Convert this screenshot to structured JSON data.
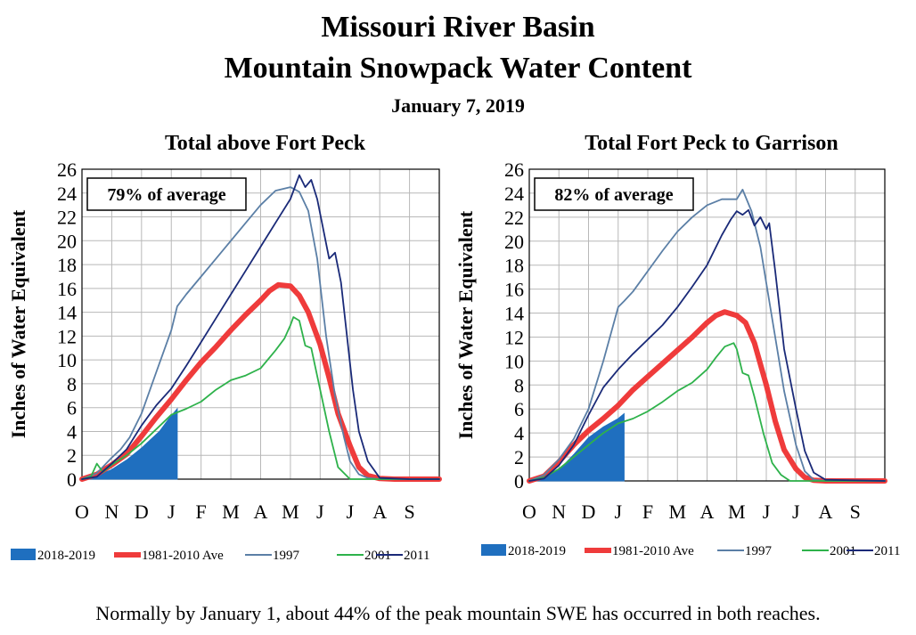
{
  "title_line1": "Missouri River Basin",
  "title_line2": "Mountain Snowpack Water Content",
  "date": "January 7, 2019",
  "footnote": "Normally by January 1, about 44% of the peak mountain SWE has occurred in both reaches.",
  "colors": {
    "s2019": "#1f6fbf",
    "ave": "#ef3b3b",
    "y1997": "#5b7fa6",
    "y2001": "#2eb24b",
    "y2011": "#1a2a78"
  },
  "chart_data": [
    {
      "type": "line",
      "title": "Total above Fort Peck",
      "ylabel": "Inches of Water Equivalent",
      "xlabel": "",
      "annotation": "79% of average",
      "x_unit": "months since Oct 1",
      "x_tick_labels": [
        "O",
        "N",
        "D",
        "J",
        "F",
        "M",
        "A",
        "M",
        "J",
        "J",
        "A",
        "S"
      ],
      "xlim": [
        0,
        12
      ],
      "ylim": [
        0,
        26
      ],
      "y_ticks": [
        0,
        2,
        4,
        6,
        8,
        10,
        12,
        14,
        16,
        18,
        20,
        22,
        24,
        26
      ],
      "grid": true,
      "legend_position": "bottom",
      "series": [
        {
          "name": "2018-2019",
          "style": "area",
          "x": [
            0,
            0.5,
            1,
            1.5,
            2,
            2.3,
            2.6,
            2.9,
            3.1,
            3.2,
            3.2
          ],
          "y": [
            0,
            0.3,
            0.8,
            1.6,
            2.6,
            3.3,
            4.0,
            5.0,
            5.6,
            5.9,
            0
          ]
        },
        {
          "name": "1981-2010 Ave",
          "style": "thick",
          "x": [
            0,
            0.5,
            1,
            1.5,
            2,
            2.5,
            3,
            3.5,
            4,
            4.5,
            5,
            5.5,
            6,
            6.3,
            6.6,
            7,
            7.3,
            7.6,
            8,
            8.3,
            8.6,
            9,
            9.3,
            9.6,
            10,
            10.5,
            11,
            12
          ],
          "y": [
            0,
            0.4,
            1.2,
            2.1,
            3.6,
            5.2,
            6.7,
            8.3,
            9.8,
            11.1,
            12.5,
            13.8,
            15.0,
            15.8,
            16.3,
            16.2,
            15.4,
            14.0,
            11.3,
            8.5,
            5.5,
            2.8,
            1.0,
            0.3,
            0.05,
            0,
            0,
            0
          ]
        },
        {
          "name": "1997",
          "style": "line",
          "x": [
            0,
            0.5,
            1,
            1.3,
            1.6,
            2,
            2.5,
            3,
            3.2,
            3.5,
            4,
            4.5,
            5,
            5.5,
            6,
            6.5,
            7,
            7.3,
            7.6,
            7.9,
            8.2,
            8.5,
            8.8,
            9,
            9.3,
            9.6,
            10,
            11,
            12
          ],
          "y": [
            0,
            0.5,
            1.8,
            2.5,
            3.5,
            5.5,
            9,
            12.5,
            14.5,
            15.5,
            17,
            18.5,
            20,
            21.5,
            23,
            24.2,
            24.5,
            24.1,
            22.5,
            18.5,
            12,
            7,
            3.5,
            1.5,
            0.4,
            0.1,
            0,
            0,
            0
          ]
        },
        {
          "name": "2001",
          "style": "line",
          "x": [
            0,
            0.3,
            0.5,
            0.7,
            1,
            1.5,
            2,
            2.5,
            3,
            3.5,
            4,
            4.5,
            5,
            5.5,
            6,
            6.5,
            6.8,
            7,
            7.1,
            7.3,
            7.5,
            7.7,
            8,
            8.3,
            8.6,
            9,
            12
          ],
          "y": [
            0,
            0.2,
            1.3,
            0.6,
            1.2,
            2.0,
            3.0,
            4.2,
            5.4,
            5.9,
            6.5,
            7.5,
            8.3,
            8.7,
            9.3,
            10.8,
            11.8,
            12.9,
            13.6,
            13.3,
            11.2,
            11.0,
            7.5,
            4.0,
            1.0,
            0,
            0
          ]
        },
        {
          "name": "2011",
          "style": "line",
          "x": [
            0,
            0.5,
            1,
            1.5,
            2,
            2.5,
            3,
            3.5,
            4,
            4.5,
            5,
            5.5,
            6,
            6.5,
            7,
            7.3,
            7.5,
            7.7,
            7.9,
            8.1,
            8.3,
            8.5,
            8.7,
            8.9,
            9.1,
            9.3,
            9.6,
            10,
            11,
            12
          ],
          "y": [
            0,
            0.2,
            1.3,
            2.5,
            4.5,
            6.2,
            7.6,
            9.5,
            11.5,
            13.5,
            15.5,
            17.5,
            19.5,
            21.5,
            23.5,
            25.5,
            24.5,
            25.1,
            23.5,
            21.0,
            18.5,
            19.0,
            16.5,
            12.0,
            7.5,
            4.0,
            1.5,
            0.1,
            0,
            0
          ]
        }
      ]
    },
    {
      "type": "line",
      "title": "Total Fort Peck to Garrison",
      "ylabel": "Inches of Water Equivalent",
      "xlabel": "",
      "annotation": "82% of average",
      "x_unit": "months since Oct 1",
      "x_tick_labels": [
        "O",
        "N",
        "D",
        "J",
        "F",
        "M",
        "A",
        "M",
        "J",
        "J",
        "A",
        "S"
      ],
      "xlim": [
        0,
        12
      ],
      "ylim": [
        0,
        26
      ],
      "y_ticks": [
        0,
        2,
        4,
        6,
        8,
        10,
        12,
        14,
        16,
        18,
        20,
        22,
        24,
        26
      ],
      "grid": true,
      "legend_position": "bottom",
      "series": [
        {
          "name": "2018-2019",
          "style": "area",
          "x": [
            0,
            0.5,
            1,
            1.5,
            2,
            2.5,
            3,
            3.2,
            3.2
          ],
          "y": [
            0,
            0.3,
            0.9,
            2.2,
            3.6,
            4.5,
            5.2,
            5.6,
            0
          ]
        },
        {
          "name": "1981-2010 Ave",
          "style": "thick",
          "x": [
            0,
            0.5,
            1,
            1.5,
            2,
            2.5,
            3,
            3.5,
            4,
            4.5,
            5,
            5.5,
            6,
            6.3,
            6.6,
            7,
            7.3,
            7.6,
            8,
            8.3,
            8.6,
            9,
            9.3,
            9.6,
            10,
            12
          ],
          "y": [
            0,
            0.4,
            1.6,
            3.0,
            4.2,
            5.2,
            6.3,
            7.6,
            8.7,
            9.8,
            10.9,
            12.0,
            13.2,
            13.8,
            14.1,
            13.8,
            13.2,
            11.5,
            8.0,
            5.0,
            2.6,
            1.0,
            0.3,
            0.05,
            0,
            0
          ]
        },
        {
          "name": "1997",
          "style": "line",
          "x": [
            0,
            0.5,
            1,
            1.5,
            2,
            2.5,
            3,
            3.2,
            3.5,
            4,
            4.5,
            5,
            5.5,
            6,
            6.5,
            7,
            7.2,
            7.5,
            7.8,
            8,
            8.3,
            8.6,
            9,
            9.3,
            9.6,
            10,
            12
          ],
          "y": [
            0,
            0.5,
            1.8,
            3.5,
            6.0,
            10.0,
            14.5,
            15.0,
            15.8,
            17.5,
            19.2,
            20.8,
            22.0,
            23.0,
            23.5,
            23.5,
            24.3,
            22.5,
            19.5,
            16.5,
            12.0,
            7.5,
            3.0,
            0.8,
            0.1,
            0,
            0
          ]
        },
        {
          "name": "2001",
          "style": "line",
          "x": [
            0,
            0.5,
            1,
            1.5,
            2,
            2.5,
            3,
            3.5,
            4,
            4.5,
            5,
            5.5,
            6,
            6.3,
            6.6,
            6.9,
            7,
            7.2,
            7.4,
            7.6,
            7.9,
            8.2,
            8.5,
            8.8,
            12
          ],
          "y": [
            0,
            0.3,
            1.0,
            2.0,
            3.0,
            4.0,
            4.8,
            5.2,
            5.8,
            6.6,
            7.5,
            8.2,
            9.3,
            10.3,
            11.2,
            11.5,
            11.0,
            9.0,
            8.8,
            7.0,
            4.0,
            1.5,
            0.5,
            0,
            0
          ]
        },
        {
          "name": "2011",
          "style": "line",
          "x": [
            0,
            0.5,
            1,
            1.5,
            2,
            2.5,
            3,
            3.5,
            4,
            4.5,
            5,
            5.5,
            6,
            6.5,
            6.8,
            7,
            7.2,
            7.4,
            7.6,
            7.8,
            8,
            8.1,
            8.3,
            8.6,
            9,
            9.3,
            9.6,
            10,
            12
          ],
          "y": [
            0,
            0.2,
            1.3,
            3.0,
            5.5,
            7.8,
            9.3,
            10.6,
            11.8,
            13.0,
            14.5,
            16.2,
            18.0,
            20.5,
            21.8,
            22.5,
            22.2,
            22.6,
            21.3,
            22.0,
            21.0,
            21.5,
            17.5,
            11.0,
            6.0,
            2.5,
            0.7,
            0.1,
            0
          ]
        }
      ]
    }
  ]
}
